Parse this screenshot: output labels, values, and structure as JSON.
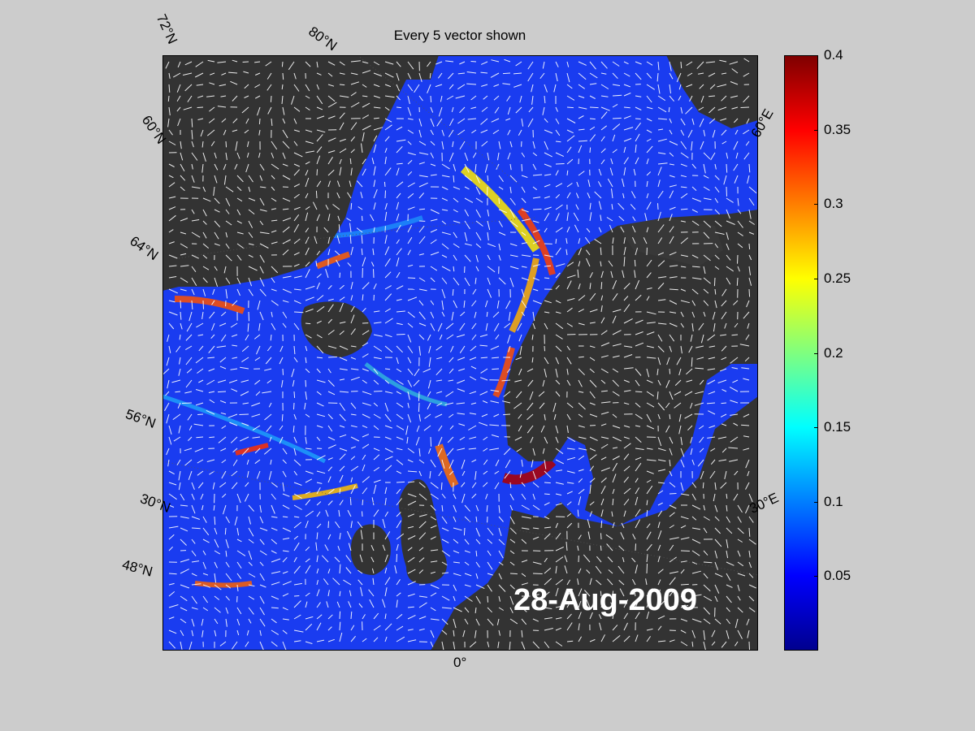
{
  "title": "Every 5 vector shown",
  "date": "28-Aug-2009",
  "lat_labels": [
    "72°N",
    "60°N",
    "64°N",
    "56°N",
    "30°N",
    "48°N",
    "80°N"
  ],
  "lon_labels": [
    "60°E",
    "30°E",
    "0°"
  ],
  "colorbar": {
    "min": 0,
    "max": 0.4,
    "ticks": [
      "0.4",
      "0.35",
      "0.3",
      "0.25",
      "0.2",
      "0.15",
      "0.1",
      "0.05"
    ],
    "colormap": "jet"
  },
  "colors": {
    "land": "#333333",
    "ocean_low": "#0000ff",
    "background": "#cccccc",
    "vectors": "#ffffff"
  }
}
